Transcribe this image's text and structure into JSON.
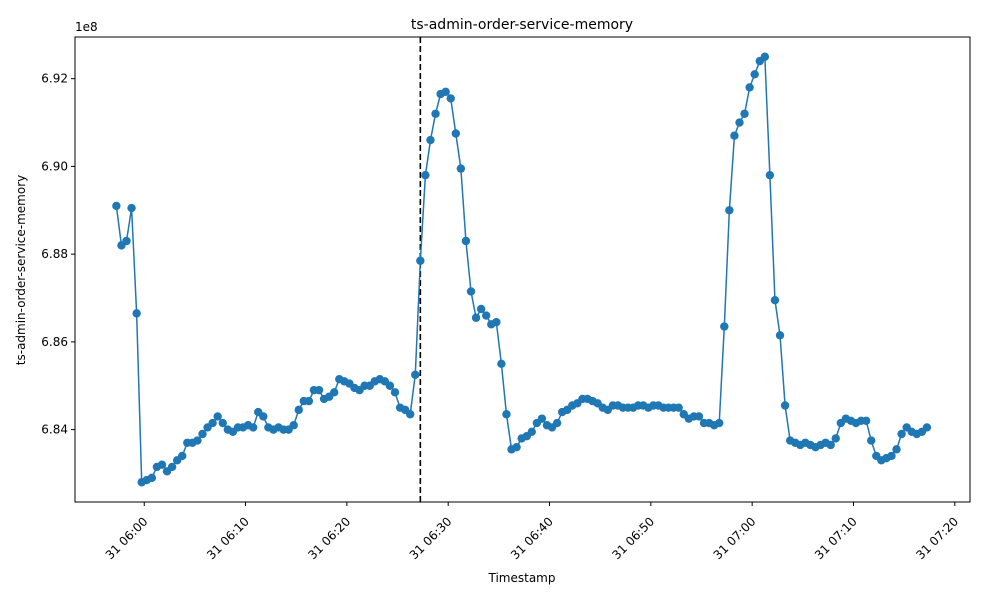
{
  "chart_data": {
    "type": "line",
    "title": "ts-admin-order-service-memory",
    "xlabel": "Timestamp",
    "ylabel": "ts-admin-order-service-memory",
    "y_scale_label": "1e8",
    "y_scale": 100000000,
    "series_color": "#1f77b4",
    "vline_color": "#000000",
    "grid": false,
    "legend": "none",
    "xlim": [
      "05:53:10",
      "07:21:30"
    ],
    "ylim": [
      6.8235,
      6.9295
    ],
    "x_ticks": [
      "06:00",
      "06:10",
      "06:20",
      "06:30",
      "06:40",
      "06:50",
      "07:00",
      "07:10",
      "07:20"
    ],
    "x_tick_labels": [
      "31 06:00",
      "31 06:10",
      "31 06:20",
      "31 06:30",
      "31 06:40",
      "31 06:50",
      "31 07:00",
      "31 07:10",
      "31 07:20"
    ],
    "y_ticks": [
      6.84,
      6.86,
      6.88,
      6.9,
      6.92
    ],
    "y_tick_labels": [
      "6.84",
      "6.86",
      "6.88",
      "6.90",
      "6.92"
    ],
    "vline_x": "06:27:15",
    "start_time": "05:57:15",
    "interval_seconds": 30,
    "series": [
      {
        "values": [
          6.891,
          6.882,
          6.883,
          6.8905,
          6.8665,
          6.828,
          6.8285,
          6.829,
          6.8315,
          6.832,
          6.8305,
          6.8315,
          6.833,
          6.834,
          6.837,
          6.837,
          6.8375,
          6.839,
          6.8405,
          6.8415,
          6.843,
          6.8415,
          6.84,
          6.8395,
          6.8405,
          6.8405,
          6.841,
          6.8405,
          6.844,
          6.843,
          6.8405,
          6.84,
          6.8405,
          6.84,
          6.84,
          6.841,
          6.8445,
          6.8465,
          6.8465,
          6.849,
          6.849,
          6.847,
          6.8475,
          6.8485,
          6.8515,
          6.851,
          6.8505,
          6.8495,
          6.849,
          6.85,
          6.85,
          6.851,
          6.8515,
          6.851,
          6.85,
          6.8485,
          6.845,
          6.8445,
          6.8435,
          6.8525,
          6.8785,
          6.898,
          6.906,
          6.912,
          6.9165,
          6.917,
          6.9155,
          6.9075,
          6.8995,
          6.883,
          6.8715,
          6.8655,
          6.8675,
          6.866,
          6.864,
          6.8645,
          6.855,
          6.8435,
          6.8355,
          6.836,
          6.838,
          6.8385,
          6.8395,
          6.8415,
          6.8425,
          6.841,
          6.8405,
          6.8415,
          6.844,
          6.8445,
          6.8455,
          6.846,
          6.847,
          6.847,
          6.8465,
          6.846,
          6.845,
          6.8445,
          6.8455,
          6.8455,
          6.845,
          6.845,
          6.845,
          6.8455,
          6.8455,
          6.845,
          6.8455,
          6.8455,
          6.845,
          6.845,
          6.845,
          6.845,
          6.8435,
          6.8425,
          6.843,
          6.843,
          6.8415,
          6.8415,
          6.841,
          6.8415,
          6.8635,
          6.89,
          6.907,
          6.91,
          6.912,
          6.918,
          6.921,
          6.924,
          6.925,
          6.898,
          6.8695,
          6.8615,
          6.8455,
          6.8375,
          6.837,
          6.8365,
          6.837,
          6.8365,
          6.836,
          6.8365,
          6.837,
          6.8365,
          6.838,
          6.8415,
          6.8425,
          6.842,
          6.8415,
          6.842,
          6.842,
          6.8375,
          6.834,
          6.833,
          6.8335,
          6.834,
          6.8355,
          6.839,
          6.8405,
          6.8395,
          6.839,
          6.8395,
          6.8405
        ]
      }
    ]
  }
}
